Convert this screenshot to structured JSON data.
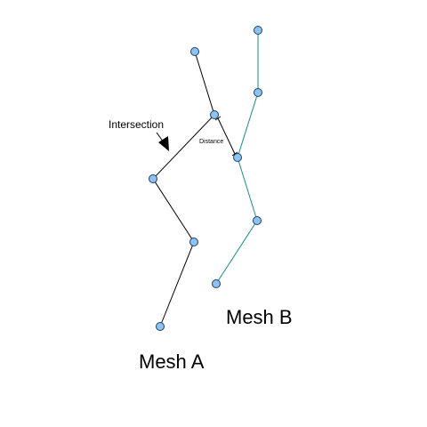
{
  "diagram": {
    "mesh_a": {
      "label": "Mesh A",
      "stroke_color": "#000000",
      "node_fill": "#8ec2f0",
      "node_stroke": "#1f3f66"
    },
    "mesh_b": {
      "label": "Mesh B",
      "stroke_color": "#1a8a8a",
      "node_fill": "#8ec2f0",
      "node_stroke": "#1f3f66"
    },
    "intersection_label": "Intersection",
    "distance_label": "Distance"
  }
}
